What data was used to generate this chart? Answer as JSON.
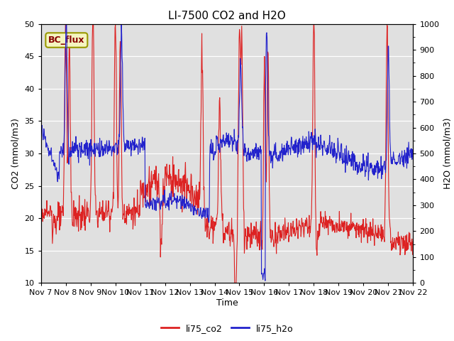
{
  "title": "LI-7500 CO2 and H2O",
  "ylabel_left": "CO2 (mmol/m3)",
  "ylabel_right": "H2O (mmol/m3)",
  "xlabel": "Time",
  "ylim_left": [
    10,
    50
  ],
  "ylim_right": [
    0,
    1000
  ],
  "yticks_left": [
    10,
    15,
    20,
    25,
    30,
    35,
    40,
    45,
    50
  ],
  "yticks_right": [
    0,
    100,
    200,
    300,
    400,
    500,
    600,
    700,
    800,
    900,
    1000
  ],
  "xtick_labels": [
    "Nov 7",
    "Nov 8",
    "Nov 9",
    "Nov 10",
    "Nov 11",
    "Nov 12",
    "Nov 13",
    "Nov 14",
    "Nov 15",
    "Nov 16",
    "Nov 17",
    "Nov 18",
    "Nov 19",
    "Nov 20",
    "Nov 21",
    "Nov 22"
  ],
  "color_co2": "#dd2222",
  "color_h2o": "#2222cc",
  "label_co2": "li75_co2",
  "label_h2o": "li75_h2o",
  "legend_text": "BC_flux",
  "background_color": "#e0e0e0",
  "title_fontsize": 11,
  "axis_label_fontsize": 9,
  "tick_fontsize": 8,
  "legend_fontsize": 9
}
